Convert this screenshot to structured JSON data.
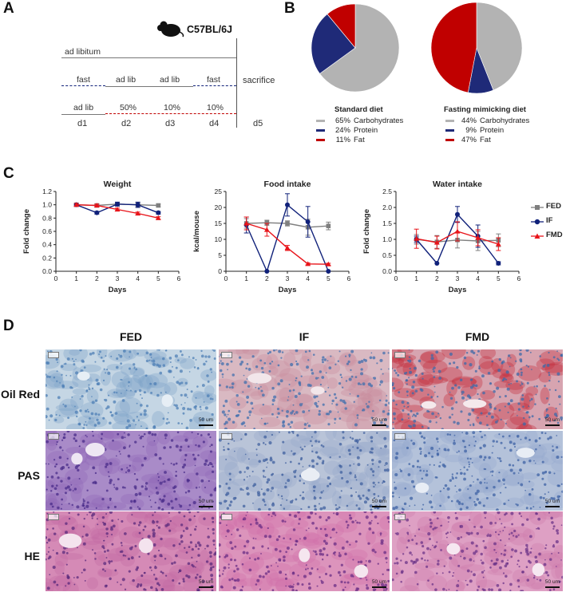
{
  "panels": {
    "a": "A",
    "b": "B",
    "c": "C",
    "d": "D"
  },
  "schedule": {
    "strain": "C57BL/6J",
    "groups": [
      {
        "label": "FED",
        "color": "#a6a6a6",
        "segments": [
          "ad libitum"
        ]
      },
      {
        "label": "IF",
        "color": "#10217a",
        "segments": [
          "fast",
          "ad lib",
          "ad lib",
          "fast"
        ]
      },
      {
        "label": "FMD",
        "color": "#c00000",
        "segments": [
          "ad lib",
          "50%",
          "10%",
          "10%"
        ]
      }
    ],
    "sacrifice": "sacrifice",
    "days": [
      "d1",
      "d2",
      "d3",
      "d4",
      "d5"
    ]
  },
  "diets": [
    {
      "title": "Standard diet",
      "slices": [
        {
          "pct": "65%",
          "name": "Carbohydrates",
          "value": 65,
          "color": "#b3b3b3"
        },
        {
          "pct": "24%",
          "name": "Protein",
          "value": 24,
          "color": "#1f2a78"
        },
        {
          "pct": "11%",
          "name": "Fat",
          "value": 11,
          "color": "#c00000"
        }
      ]
    },
    {
      "title": "Fasting mimicking diet",
      "slices": [
        {
          "pct": "44%",
          "name": "Carbohydrates",
          "value": 44,
          "color": "#b3b3b3"
        },
        {
          "pct": "9%",
          "name": "Protein",
          "value": 9,
          "color": "#1f2a78"
        },
        {
          "pct": "47%",
          "name": "Fat",
          "value": 47,
          "color": "#c00000"
        }
      ]
    }
  ],
  "chart_data": [
    {
      "type": "line",
      "title": "Weight",
      "xlabel": "Days",
      "ylabel": "Fold change",
      "xlim": [
        0,
        6
      ],
      "ylim": [
        0,
        1.2
      ],
      "xticks": [
        "0",
        "1",
        "2",
        "3",
        "4",
        "5",
        "6"
      ],
      "yticks": [
        "0.0",
        "0.2",
        "0.4",
        "0.6",
        "0.8",
        "1.0",
        "1.2"
      ],
      "series": [
        {
          "name": "FED",
          "color": "#7f7f7f",
          "marker": "square",
          "x": [
            1,
            2,
            3,
            4,
            5
          ],
          "y": [
            1.0,
            0.99,
            1.01,
            1.0,
            0.99
          ],
          "err": [
            0.02,
            0.02,
            0.02,
            0.03,
            0.02
          ]
        },
        {
          "name": "IF",
          "color": "#10217a",
          "marker": "circle",
          "x": [
            1,
            2,
            3,
            4,
            5
          ],
          "y": [
            1.0,
            0.88,
            1.01,
            1.0,
            0.88
          ],
          "err": [
            0.02,
            0.02,
            0.03,
            0.04,
            0.02
          ]
        },
        {
          "name": "FMD",
          "color": "#e8141a",
          "marker": "triangle",
          "x": [
            1,
            2,
            3,
            4,
            5
          ],
          "y": [
            1.0,
            0.99,
            0.93,
            0.87,
            0.8
          ],
          "err": [
            0.02,
            0.02,
            0.02,
            0.02,
            0.02
          ]
        }
      ]
    },
    {
      "type": "line",
      "title": "Food intake",
      "xlabel": "Days",
      "ylabel": "kcal/mouse",
      "xlim": [
        0,
        6
      ],
      "ylim": [
        0,
        25
      ],
      "xticks": [
        "0",
        "1",
        "2",
        "3",
        "4",
        "5",
        "6"
      ],
      "yticks": [
        "0",
        "5",
        "10",
        "15",
        "20",
        "25"
      ],
      "series": [
        {
          "name": "FED",
          "color": "#7f7f7f",
          "marker": "square",
          "x": [
            1,
            2,
            3,
            4,
            5
          ],
          "y": [
            15.0,
            15.2,
            15.0,
            13.8,
            14.2
          ],
          "err": [
            1.5,
            0.8,
            0.8,
            2.5,
            1.2
          ]
        },
        {
          "name": "IF",
          "color": "#10217a",
          "marker": "circle",
          "x": [
            1,
            2,
            3,
            4,
            5
          ],
          "y": [
            14.5,
            0,
            20.8,
            15.5,
            0
          ],
          "err": [
            2.5,
            0,
            3.5,
            4.8,
            0
          ]
        },
        {
          "name": "FMD",
          "color": "#e8141a",
          "marker": "triangle",
          "x": [
            1,
            2,
            3,
            4,
            5
          ],
          "y": [
            15.0,
            13.0,
            7.3,
            2.3,
            2.2
          ],
          "err": [
            2.0,
            2.0,
            0.8,
            0.3,
            0.3
          ]
        }
      ]
    },
    {
      "type": "line",
      "title": "Water intake",
      "xlabel": "Days",
      "ylabel": "Fold change",
      "xlim": [
        0,
        6
      ],
      "ylim": [
        0,
        2.5
      ],
      "xticks": [
        "0",
        "1",
        "2",
        "3",
        "4",
        "5",
        "6"
      ],
      "yticks": [
        "0.0",
        "0.5",
        "1.0",
        "1.5",
        "2.0",
        "2.5"
      ],
      "legend": [
        "FED",
        "IF",
        "FMD"
      ],
      "series": [
        {
          "name": "FED",
          "color": "#7f7f7f",
          "marker": "square",
          "x": [
            1,
            2,
            3,
            4,
            5
          ],
          "y": [
            1.0,
            0.92,
            0.98,
            0.95,
            0.97
          ],
          "err": [
            0.15,
            0.2,
            0.25,
            0.3,
            0.2
          ]
        },
        {
          "name": "IF",
          "color": "#10217a",
          "marker": "circle",
          "x": [
            1,
            2,
            3,
            4,
            5
          ],
          "y": [
            1.0,
            0.25,
            1.78,
            1.1,
            0.25
          ],
          "err": [
            0.1,
            0.0,
            0.25,
            0.35,
            0.05
          ]
        },
        {
          "name": "FMD",
          "color": "#e8141a",
          "marker": "triangle",
          "x": [
            1,
            2,
            3,
            4,
            5
          ],
          "y": [
            1.02,
            0.9,
            1.25,
            1.05,
            0.85
          ],
          "err": [
            0.3,
            0.2,
            0.3,
            0.25,
            0.2
          ]
        }
      ]
    }
  ],
  "histology": {
    "columns": [
      "FED",
      "IF",
      "FMD"
    ],
    "rows": [
      {
        "label": "Oil Red",
        "tiles": [
          {
            "bg": "#c5d6e4",
            "dot": "#4e7fb6",
            "accent": "#7fa3c9",
            "vessel": "#e6eef5"
          },
          {
            "bg": "#d9b9c2",
            "dot": "#3f6fae",
            "accent": "#c98b9d",
            "vessel": "#f2e6ea"
          },
          {
            "bg": "#d7a4b0",
            "dot": "#3d6aa8",
            "accent": "#c22a3a",
            "vessel": "#f5e9ec"
          }
        ]
      },
      {
        "label": "PAS",
        "tiles": [
          {
            "bg": "#a98bc8",
            "dot": "#4a2c8a",
            "accent": "#8e67b6",
            "vessel": "#eee6f3"
          },
          {
            "bg": "#b9c4d8",
            "dot": "#40609f",
            "accent": "#98aacb",
            "vessel": "#e9edf4"
          },
          {
            "bg": "#b4c2da",
            "dot": "#3e62a4",
            "accent": "#96a9cd",
            "vessel": "#e8edf5"
          }
        ]
      },
      {
        "label": "HE",
        "tiles": [
          {
            "bg": "#d58ab6",
            "dot": "#5a2a7c",
            "accent": "#c46aa2",
            "vessel": "#f4e3ee"
          },
          {
            "bg": "#dc94bc",
            "dot": "#6a2e86",
            "accent": "#d06fa8",
            "vessel": "#f5e6ef"
          },
          {
            "bg": "#dea0c4",
            "dot": "#6b3388",
            "accent": "#cf7cad",
            "vessel": "#f6e8f1"
          }
        ]
      }
    ],
    "scale": "50 um"
  }
}
